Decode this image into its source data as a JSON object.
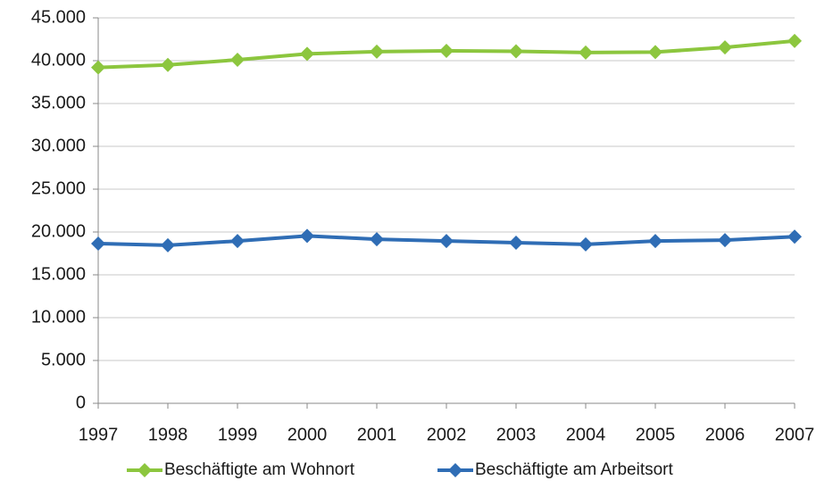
{
  "chart_data": {
    "type": "line",
    "categories": [
      "1997",
      "1998",
      "1999",
      "2000",
      "2001",
      "2002",
      "2003",
      "2004",
      "2005",
      "2006",
      "2007"
    ],
    "series": [
      {
        "name": "Beschäftigte am Wohnort",
        "color": "#8cc63e",
        "values": [
          39200,
          39500,
          40100,
          40800,
          41050,
          41150,
          41100,
          40950,
          41000,
          41550,
          42300
        ]
      },
      {
        "name": "Beschäftigte am Arbeitsort",
        "color": "#2f6db5",
        "values": [
          18650,
          18450,
          18950,
          19550,
          19150,
          18950,
          18750,
          18550,
          18950,
          19050,
          19450
        ]
      }
    ],
    "ylim": [
      0,
      45000
    ],
    "yticks": [
      0,
      {
        "value": 5000,
        "label": "5.000"
      },
      {
        "value": 10000,
        "label": "10.000"
      },
      {
        "value": 15000,
        "label": "15.000"
      },
      {
        "value": 20000,
        "label": "20.000"
      },
      {
        "value": 25000,
        "label": "25.000"
      },
      {
        "value": 30000,
        "label": "30.000"
      },
      {
        "value": 35000,
        "label": "35.000"
      },
      {
        "value": 40000,
        "label": "40.000"
      },
      {
        "value": 45000,
        "label": "45.000"
      }
    ],
    "grid": true,
    "legend": "bottom"
  }
}
